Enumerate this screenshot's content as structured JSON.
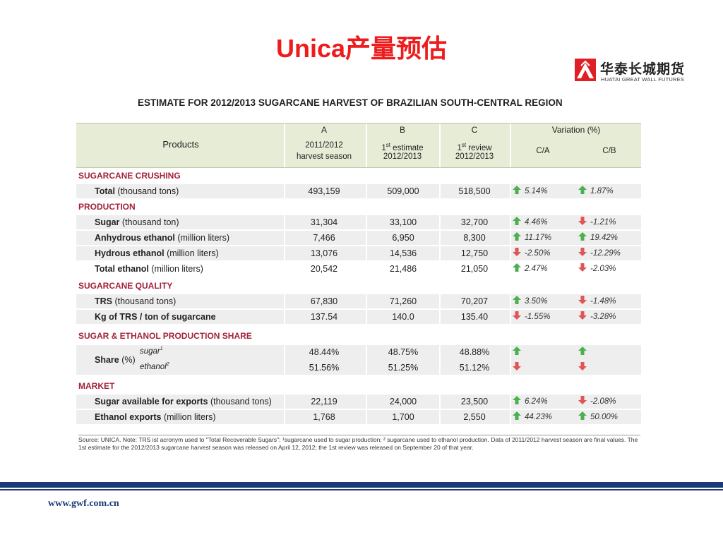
{
  "slide": {
    "title": "Unica产量预估",
    "logo_cn": "华泰长城期货",
    "logo_en": "HUATAI GREAT WALL FUTURES",
    "website": "www.gwf.com.cn"
  },
  "table": {
    "heading": "ESTIMATE FOR 2012/2013 SUGARCANE HARVEST OF BRAZILIAN SOUTH-CENTRAL REGION",
    "header": {
      "products": "Products",
      "col_a_letter": "A",
      "col_a_line1": "2011/2012",
      "col_a_line2": "harvest season",
      "col_b_letter": "B",
      "col_b_sup": "st",
      "col_b_line1": "1",
      "col_b_line1_rest": " estimate",
      "col_b_line2": "2012/2013",
      "col_c_letter": "C",
      "col_c_sup": "st",
      "col_c_line1": "1",
      "col_c_line1_rest": " review",
      "col_c_line2": "2012/2013",
      "variation": "Variation (%)",
      "ca": "C/A",
      "cb": "C/B"
    },
    "sections": {
      "crushing": "SUGARCANE CRUSHING",
      "production": "PRODUCTION",
      "quality": "SUGARCANE QUALITY",
      "share": "SUGAR & ETHANOL PRODUCTION SHARE",
      "market": "MARKET"
    },
    "rows": {
      "total": {
        "name": "Total",
        "unit": " (thousand tons)",
        "a": "493,159",
        "b": "509,000",
        "c": "518,500",
        "ca": "5.14%",
        "cb": "1.87%"
      },
      "sugar": {
        "name": "Sugar",
        "unit": " (thousand ton)",
        "a": "31,304",
        "b": "33,100",
        "c": "32,700",
        "ca": "4.46%",
        "cb": "-1.21%"
      },
      "anhydrous": {
        "name": "Anhydrous ethanol",
        "unit": " (million liters)",
        "a": "7,466",
        "b": "6,950",
        "c": "8,300",
        "ca": "11.17%",
        "cb": "19.42%"
      },
      "hydrous": {
        "name": "Hydrous ethanol",
        "unit": " (million liters)",
        "a": "13,076",
        "b": "14,536",
        "c": "12,750",
        "ca": "-2.50%",
        "cb": "-12.29%"
      },
      "total_ethanol": {
        "name": "Total ethanol",
        "unit": " (million liters)",
        "a": "20,542",
        "b": "21,486",
        "c": "21,050",
        "ca": "2.47%",
        "cb": "-2.03%"
      },
      "trs": {
        "name": "TRS",
        "unit": "  (thousand tons)",
        "a": "67,830",
        "b": "71,260",
        "c": "70,207",
        "ca": "3.50%",
        "cb": "-1.48%"
      },
      "kg_trs": {
        "name": "Kg of TRS / ton of sugarcane",
        "unit": "",
        "a": "137.54",
        "b": "140.0",
        "c": "135.40",
        "ca": "-1.55%",
        "cb": "-3.28%"
      },
      "share": {
        "name": "Share",
        "unit": " (%)",
        "sugar_label": "sugar",
        "sugar_sup": "1",
        "ethanol_label": "ethanol",
        "ethanol_sup": "2",
        "sugar_a": "48.44%",
        "sugar_b": "48.75%",
        "sugar_c": "48.88%",
        "ethanol_a": "51.56%",
        "ethanol_b": "51.25%",
        "ethanol_c": "51.12%"
      },
      "sugar_exports": {
        "name": "Sugar available for exports",
        "unit": " (thousand tons)",
        "a": "22,119",
        "b": "24,000",
        "c": "23,500",
        "ca": "6.24%",
        "cb": "-2.08%"
      },
      "ethanol_exports": {
        "name": "Ethanol exports",
        "unit": " (million liters)",
        "a": "1,768",
        "b": "1,700",
        "c": "2,550",
        "ca": "44.23%",
        "cb": "50.00%"
      }
    },
    "source_note": "Source: UNICA. Note: TRS ist acronym used to \"Total Recoverable Sugars\"; ¹sugarcane used to sugar production; ² sugarcane used to ethanol production. Data of 2011/2012 harvest season are final values. The 1st estimate for the 2012/2013 sugarcane harvest season was released on April 12, 2012; the 1st review was released on September 20 of that year."
  },
  "colors": {
    "title": "#ee1c1c",
    "section": "#a3233a",
    "up": "#4caf50",
    "down": "#e05555",
    "footer": "#1a3a78"
  }
}
